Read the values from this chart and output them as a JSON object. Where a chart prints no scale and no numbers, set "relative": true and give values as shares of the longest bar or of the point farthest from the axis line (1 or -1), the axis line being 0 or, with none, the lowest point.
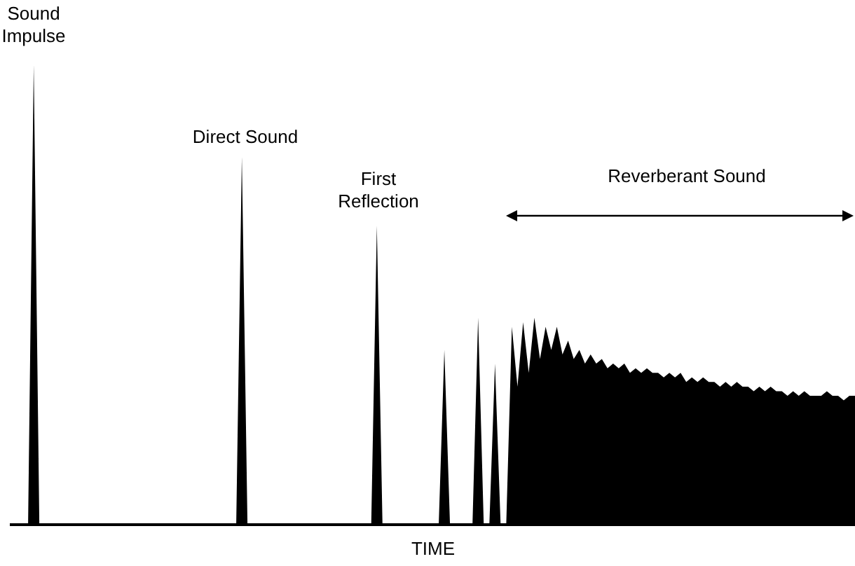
{
  "chart_data": {
    "type": "area",
    "relative": true,
    "color": "#000000",
    "xlabel": "TIME",
    "annotations": [
      "Sound Impulse",
      "Direct Sound",
      "First Reflection",
      "Reverberant Sound"
    ],
    "categories": [
      null,
      null,
      null,
      null,
      null,
      null,
      null,
      null,
      null,
      null,
      null,
      null,
      null,
      null,
      null,
      null,
      null,
      null,
      null,
      null,
      null,
      null,
      null,
      null,
      null,
      null,
      null,
      null,
      null,
      null,
      null,
      null,
      null,
      null,
      null,
      null,
      null,
      null,
      null,
      null,
      null,
      null,
      null,
      null,
      null,
      null,
      null,
      null,
      null,
      null,
      null,
      null,
      null,
      null,
      null,
      null,
      null,
      null,
      null,
      null,
      null,
      null,
      null,
      null,
      null,
      null,
      null,
      null,
      null,
      null,
      null,
      null,
      null,
      null,
      null,
      null,
      null,
      null,
      null,
      null,
      null,
      null,
      null,
      null,
      null,
      null,
      null,
      null,
      null,
      null,
      null,
      null,
      null,
      null,
      null,
      null,
      null,
      null,
      null,
      null,
      null,
      null,
      null,
      null,
      null,
      null,
      null,
      null,
      null,
      null,
      null,
      null,
      null,
      null,
      null,
      null,
      null,
      null,
      null,
      null,
      null,
      null,
      null,
      null,
      null,
      null,
      null,
      null,
      null,
      null,
      null,
      null,
      null,
      null,
      null,
      null,
      null,
      null,
      null,
      null,
      null,
      null,
      null,
      null,
      null,
      null,
      null,
      null,
      null,
      null,
      null
    ],
    "values": [
      0,
      0,
      0,
      0,
      1,
      0,
      0,
      0,
      0,
      0,
      0,
      0,
      0,
      0,
      0,
      0,
      0,
      0,
      0,
      0,
      0,
      0,
      0,
      0,
      0,
      0,
      0,
      0,
      0,
      0,
      0,
      0,
      0,
      0,
      0,
      0,
      0,
      0,
      0,
      0,
      0,
      0.8,
      0,
      0,
      0,
      0,
      0,
      0,
      0,
      0,
      0,
      0,
      0,
      0,
      0,
      0,
      0,
      0,
      0,
      0,
      0,
      0,
      0,
      0,
      0,
      0.65,
      0,
      0,
      0,
      0,
      0,
      0,
      0,
      0,
      0,
      0,
      0,
      0.38,
      0,
      0,
      0,
      0,
      0,
      0.45,
      0,
      0,
      0.35,
      0,
      0,
      0.43,
      0.3,
      0.44,
      0.33,
      0.45,
      0.36,
      0.43,
      0.38,
      0.43,
      0.37,
      0.4,
      0.36,
      0.38,
      0.35,
      0.37,
      0.35,
      0.36,
      0.34,
      0.35,
      0.34,
      0.35,
      0.33,
      0.34,
      0.33,
      0.34,
      0.33,
      0.33,
      0.32,
      0.33,
      0.32,
      0.33,
      0.31,
      0.32,
      0.31,
      0.32,
      0.31,
      0.31,
      0.3,
      0.31,
      0.3,
      0.31,
      0.3,
      0.3,
      0.29,
      0.3,
      0.29,
      0.3,
      0.29,
      0.29,
      0.28,
      0.29,
      0.28,
      0.29,
      0.28,
      0.28,
      0.28,
      0.29,
      0.28,
      0.28,
      0.27,
      0.28,
      0.28
    ]
  }
}
